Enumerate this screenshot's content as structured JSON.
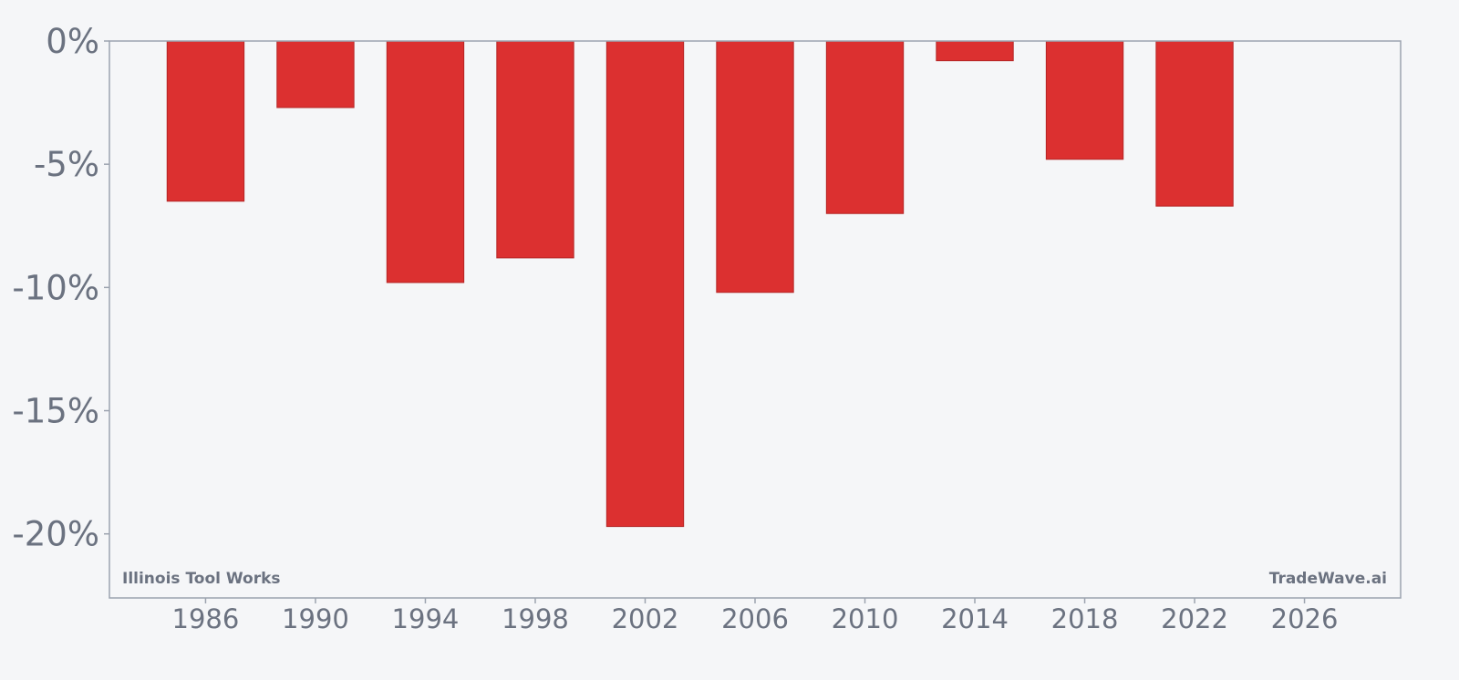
{
  "chart_data": {
    "type": "bar",
    "x": [
      1986,
      1990,
      1994,
      1998,
      2002,
      2006,
      2010,
      2014,
      2018,
      2022
    ],
    "values": [
      -6.5,
      -2.7,
      -9.8,
      -8.8,
      -19.7,
      -10.2,
      -7.0,
      -0.8,
      -4.8,
      -6.7
    ],
    "value_unit": "%",
    "xlim": [
      1982.5,
      2029.5
    ],
    "ylim": [
      -22.6,
      0
    ],
    "x_ticks": [
      1986,
      1990,
      1994,
      1998,
      2002,
      2006,
      2010,
      2014,
      2018,
      2022,
      2026
    ],
    "x_tick_labels": [
      "1986",
      "1990",
      "1994",
      "1998",
      "2002",
      "2006",
      "2010",
      "2014",
      "2018",
      "2022",
      "2026"
    ],
    "y_ticks": [
      0,
      -5,
      -10,
      -15,
      -20
    ],
    "y_tick_labels": [
      "0%",
      "-5%",
      "-10%",
      "-15%",
      "-20%"
    ],
    "bar_width_years": 2.8,
    "title": "",
    "xlabel": "",
    "ylabel": "",
    "grid": false,
    "legend": "none",
    "colors": {
      "bar": "#dc3030",
      "bar_edge": "#b52525",
      "axis": "#9ca3af",
      "text": "#6b7280",
      "background": "#f5f6f8"
    }
  },
  "watermark": {
    "left": "Illinois Tool Works",
    "right": "TradeWave.ai"
  }
}
